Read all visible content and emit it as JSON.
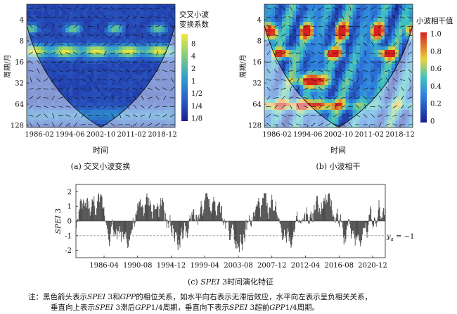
{
  "chart_data": [
    {
      "type": "heatmap",
      "caption": "(a) 交叉小波变换",
      "xlabel": "时间",
      "ylabel": "周期/月",
      "x_ticks": [
        "1986-02",
        "1994-06",
        "2002-10",
        "2011-02",
        "2018-12"
      ],
      "y_ticks": [
        "4",
        "8",
        "16",
        "32",
        "64",
        "128"
      ],
      "y_scale": "log2",
      "colorbar_title": [
        "交叉小波",
        "变换系数"
      ],
      "colorbar_ticks": [
        "8",
        "4",
        "2",
        "1",
        "1/2",
        "1/4",
        "1/8"
      ],
      "colors": {
        "low": "#1a1f8f",
        "mid": "#2f9fd0",
        "high": "#f5e83a"
      }
    },
    {
      "type": "heatmap",
      "caption": "(b) 小波相干",
      "xlabel": "时间",
      "ylabel": "周期/月",
      "x_ticks": [
        "1986-02",
        "1994-06",
        "2002-10",
        "2011-02",
        "2018-12"
      ],
      "y_ticks": [
        "4",
        "8",
        "16",
        "32",
        "64",
        "128"
      ],
      "y_scale": "log2",
      "colorbar_title": [
        "小波相干值"
      ],
      "colorbar_ticks": [
        "1.0",
        "0.8",
        "0.6",
        "0.4",
        "0.2",
        "0"
      ],
      "colors": {
        "low": "#1a1f8f",
        "mid": "#3fc3c0",
        "high": "#d4211f"
      }
    },
    {
      "type": "bar",
      "caption_prefix": "(c) ",
      "caption_italic": "SPEI",
      "caption_rest": " 3时间演化特征",
      "ylabel_italic": "SPEI",
      "ylabel_rest": " 3",
      "x_ticks": [
        "1986-04",
        "1990-08",
        "1994-12",
        "1999-04",
        "2003-08",
        "2007-12",
        "2012-04",
        "2016-08",
        "2020-12"
      ],
      "y_ticks": [
        "2",
        "1",
        "0",
        "-1",
        "-2"
      ],
      "ylim": [
        -2.5,
        2.5
      ],
      "x_range": [
        "1982-01",
        "2020-12"
      ],
      "n_months": 468,
      "threshold": {
        "value": -1,
        "label_main": "y",
        "label_sub": "a",
        "label_rest": " = −1"
      }
    }
  ],
  "note": {
    "line1_parts": [
      "注：黑色箭头表示",
      "SPEI",
      " 3和",
      "GPP",
      "的相位关系，如水平向右表示无滞后效应，水平向左表示呈负相关关系，"
    ],
    "line2_parts": [
      "垂直向上表示",
      "SPEI",
      " 3滞后",
      "GPP",
      "1/4周期，垂直向下表示",
      "SPEI",
      " 3超前",
      "GPP",
      "1/4周期。"
    ]
  }
}
